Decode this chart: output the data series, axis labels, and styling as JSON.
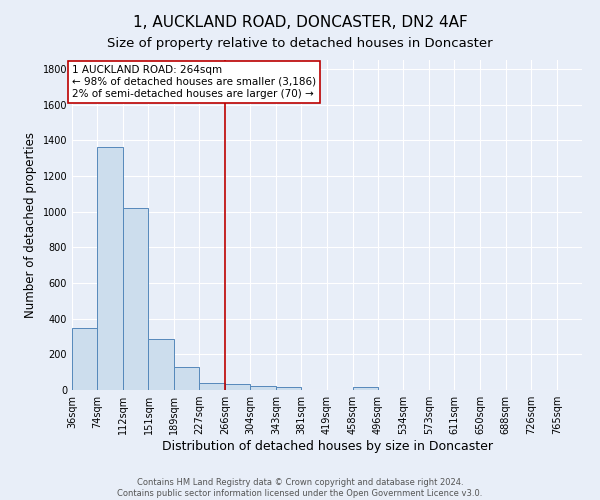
{
  "title": "1, AUCKLAND ROAD, DONCASTER, DN2 4AF",
  "subtitle": "Size of property relative to detached houses in Doncaster",
  "xlabel": "Distribution of detached houses by size in Doncaster",
  "ylabel": "Number of detached properties",
  "footer_line1": "Contains HM Land Registry data © Crown copyright and database right 2024.",
  "footer_line2": "Contains public sector information licensed under the Open Government Licence v3.0.",
  "bar_edges": [
    36,
    74,
    112,
    151,
    189,
    227,
    266,
    304,
    343,
    381,
    419,
    458,
    496,
    534,
    573,
    611,
    650,
    688,
    726,
    765,
    803
  ],
  "bar_heights": [
    350,
    1360,
    1020,
    285,
    130,
    40,
    35,
    22,
    15,
    0,
    0,
    15,
    0,
    0,
    0,
    0,
    0,
    0,
    0,
    0
  ],
  "bar_color": "#ccdded",
  "bar_edge_color": "#5588bb",
  "reference_line_x": 266,
  "reference_line_color": "#bb0000",
  "annotation_text": "1 AUCKLAND ROAD: 264sqm\n← 98% of detached houses are smaller (3,186)\n2% of semi-detached houses are larger (70) →",
  "annotation_box_color": "#ffffff",
  "annotation_box_edge_color": "#bb0000",
  "ylim": [
    0,
    1850
  ],
  "yticks": [
    0,
    200,
    400,
    600,
    800,
    1000,
    1200,
    1400,
    1600,
    1800
  ],
  "background_color": "#e8eef8",
  "plot_background_color": "#e8eef8",
  "grid_color": "#ffffff",
  "title_fontsize": 11,
  "subtitle_fontsize": 9.5,
  "tick_label_fontsize": 7,
  "axis_label_fontsize": 9,
  "ylabel_fontsize": 8.5
}
